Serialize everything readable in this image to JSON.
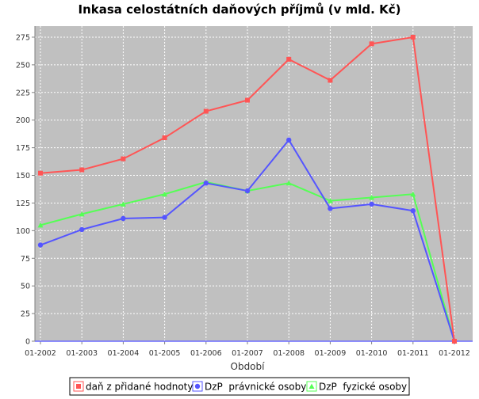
{
  "chart_data": {
    "type": "line",
    "title": "Inkasa celostátních daňových příjmů (v mld. Kč)",
    "xlabel": "Období",
    "ylabel": "",
    "categories": [
      "01-2002",
      "01-2003",
      "01-2004",
      "01-2005",
      "01-2006",
      "01-2007",
      "01-2008",
      "01-2009",
      "01-2010",
      "01-2011",
      "01-2012"
    ],
    "ylim": [
      0,
      285
    ],
    "yticks": [
      0,
      25,
      50,
      75,
      100,
      125,
      150,
      175,
      200,
      225,
      250,
      275
    ],
    "grid": true,
    "legend_position": "bottom",
    "series": [
      {
        "name": "daň z přidané hodnoty",
        "color": "#ff5555",
        "marker": "square",
        "values": [
          152,
          155,
          165,
          184,
          208,
          218,
          255,
          236,
          269,
          275,
          0
        ]
      },
      {
        "name": "DzP  právnické osoby",
        "color": "#5555ff",
        "marker": "circle",
        "values": [
          87,
          101,
          111,
          112,
          143,
          136,
          182,
          120,
          124,
          118,
          0
        ]
      },
      {
        "name": "DzP  fyzické osoby",
        "color": "#55ff55",
        "marker": "triangle",
        "values": [
          105,
          115,
          124,
          133,
          144,
          136,
          143,
          127,
          130,
          133,
          0
        ]
      }
    ]
  }
}
